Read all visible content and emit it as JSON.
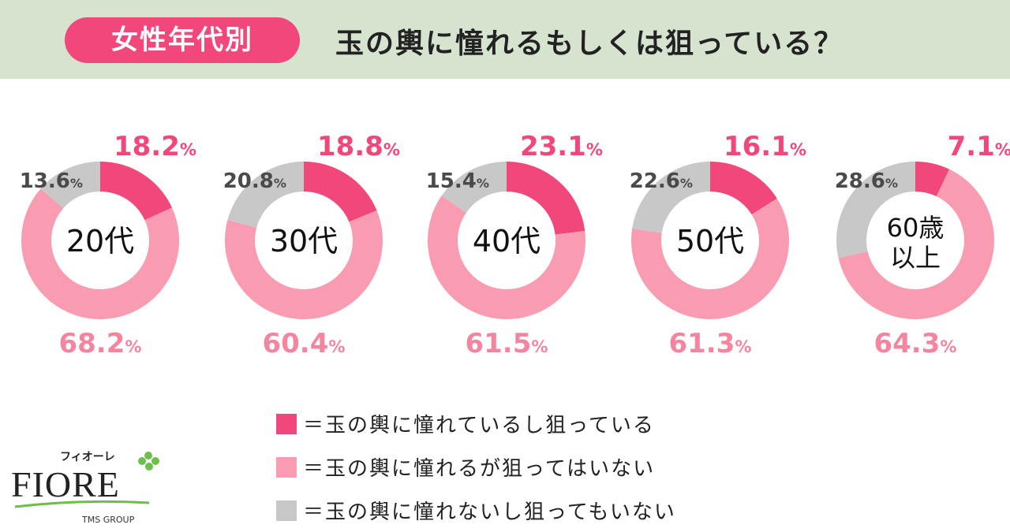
{
  "header": {
    "badge": "女性年代別",
    "title": "玉の輿に憧れるもしくは狙っている？"
  },
  "colors": {
    "yes_both": "#f2477a",
    "admire_only": "#f99bb1",
    "neither": "#c8c8c8",
    "header_bg": "#d5e3cf"
  },
  "chart_data": {
    "type": "pie",
    "variant": "donut",
    "series_labels": [
      "＝玉の輿に憧れているし狙っている",
      "＝玉の輿に憧れるが狙ってはいない",
      "＝玉の輿に憧れないし狙ってもいない"
    ],
    "charts": [
      {
        "label": "20代",
        "values": [
          18.2,
          68.2,
          13.6
        ]
      },
      {
        "label": "30代",
        "values": [
          18.8,
          60.4,
          20.8
        ]
      },
      {
        "label": "40代",
        "values": [
          23.1,
          61.5,
          15.4
        ]
      },
      {
        "label": "50代",
        "values": [
          16.1,
          61.3,
          22.6
        ]
      },
      {
        "label": "60歳\n以上",
        "values": [
          7.1,
          64.3,
          28.6
        ]
      }
    ],
    "unit": "%"
  },
  "logo": {
    "kana": "フィオーレ",
    "name": "FIORE",
    "group": "TMS GROUP"
  }
}
